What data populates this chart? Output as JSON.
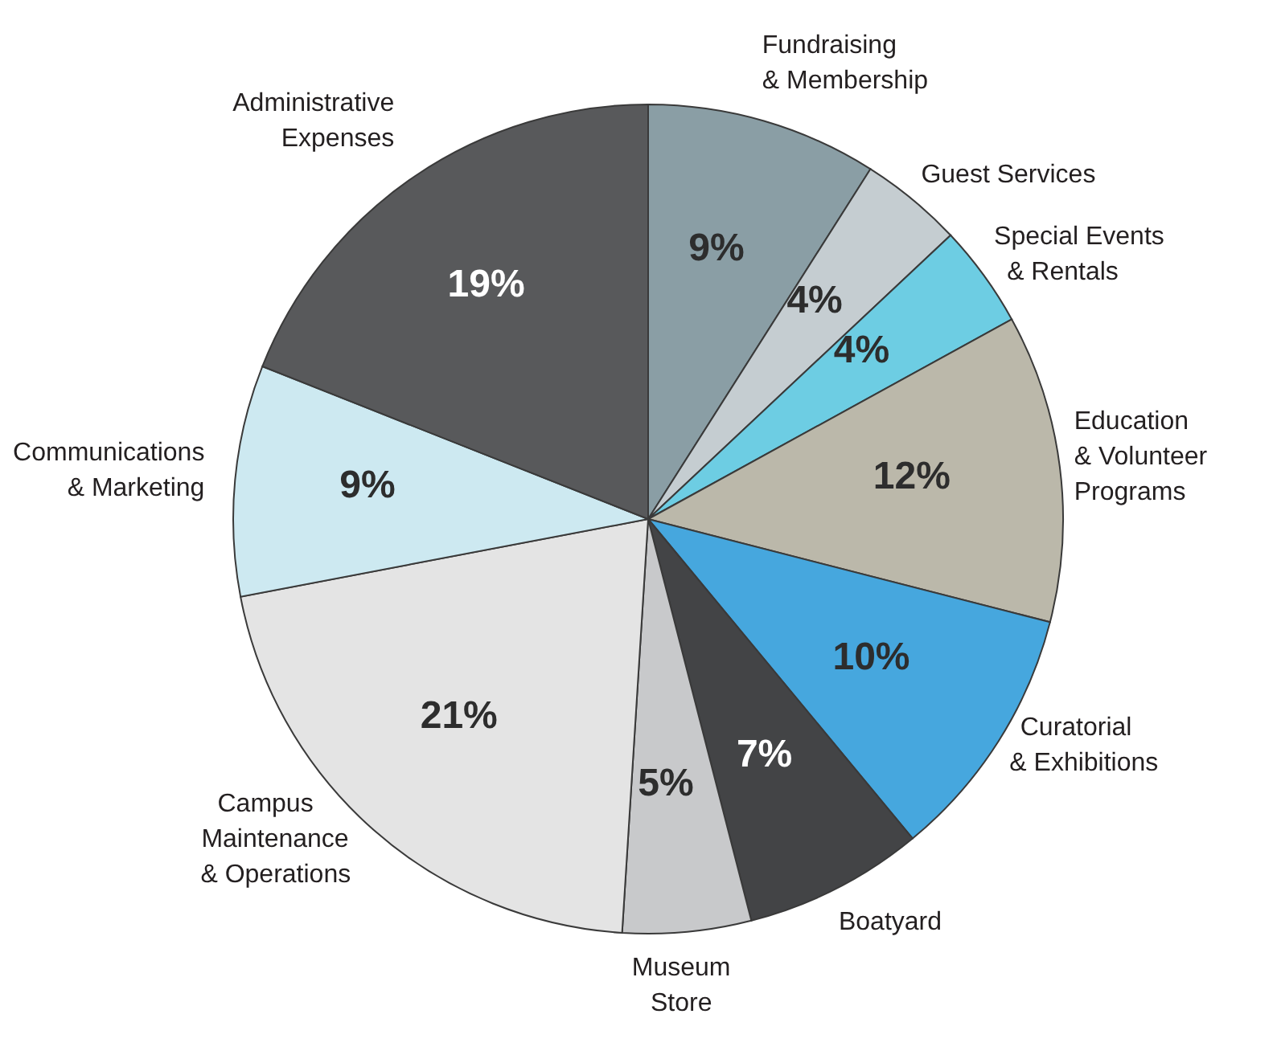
{
  "chart_data": {
    "type": "pie",
    "categories": [
      "Fundraising\n& Membership",
      "Guest Services",
      "Special Events\n& Rentals",
      "Education\n& Volunteer\nPrograms",
      "Curatorial\n& Exhibitions",
      "Boatyard",
      "Museum\nStore",
      "Campus\nMaintenance\n& Operations",
      "Communications\n& Marketing",
      "Administrative\nExpenses"
    ],
    "values": [
      9,
      4,
      4,
      12,
      10,
      7,
      5,
      21,
      9,
      19
    ],
    "value_labels": [
      "9%",
      "4%",
      "4%",
      "12%",
      "10%",
      "7%",
      "5%",
      "21%",
      "9%",
      "19%"
    ],
    "colors": [
      "#8a9ea5",
      "#c5cdd1",
      "#6dcde3",
      "#bbb8aa",
      "#46a7de",
      "#434446",
      "#c8c9cb",
      "#e4e4e4",
      "#cde9f1",
      "#58595b"
    ],
    "legend": false
  }
}
